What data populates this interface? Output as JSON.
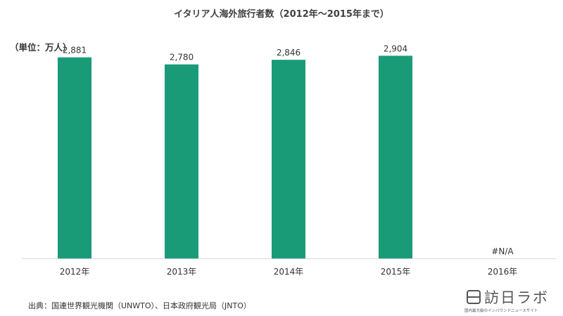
{
  "title": "イタリア人海外旅行者数（2012年～2015年まで）",
  "unit_label": "（単位：万人）",
  "source": "出典：国連世界観光機関（UNWTO）、日本政府観光局（JNTO）",
  "logo": {
    "name": "訪日ラボ",
    "tagline": "国内最大級のインバウンドニュースサイト"
  },
  "colors": {
    "bar": "#1a9b78",
    "axis": "#d9d9d9"
  },
  "chart_data": {
    "type": "bar",
    "categories": [
      "2012年",
      "2013年",
      "2014年",
      "2015年",
      "2016年"
    ],
    "values": [
      2881,
      2780,
      2846,
      2904,
      null
    ],
    "value_labels": [
      "2,881",
      "2,780",
      "2,846",
      "2,904",
      "#N/A"
    ],
    "ylim": [
      0,
      3250
    ],
    "grid": false,
    "legend": "none"
  }
}
